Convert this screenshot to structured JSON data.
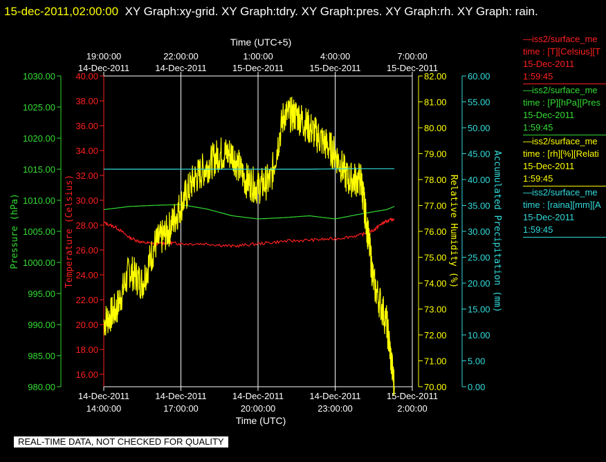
{
  "header": {
    "datetime": "15-dec-2011,02:00:00",
    "title": "XY Graph:xy-grid.  XY Graph:tdry.  XY Graph:pres.  XY Graph:rh.  XY Graph: rain."
  },
  "footer": {
    "notice": "REAL-TIME DATA, NOT CHECKED FOR QUALITY"
  },
  "legend": [
    {
      "lines": [
        "—iss2/surface_me",
        "time : [T][Celsius][T",
        "15-Dec-2011",
        "1:59:45"
      ],
      "color": "#ff2020"
    },
    {
      "lines": [
        "—iss2/surface_me",
        "time : [P][hPa][Pres",
        "15-Dec-2011",
        "1:59:45"
      ],
      "color": "#33dd33"
    },
    {
      "lines": [
        "—iss2/surface_me",
        "time : [rh][%][Relati",
        "15-Dec-2011",
        "1:59:45"
      ],
      "color": "#ffff00"
    },
    {
      "lines": [
        "—iss2/surface_me",
        "time : [raina][mm][A",
        "15-Dec-2011",
        "1:59:45"
      ],
      "color": "#33dddd"
    }
  ],
  "chart_data": {
    "type": "line",
    "x_bottom": {
      "label": "Time (UTC)",
      "range_hours_from_14dec_14utc": [
        0,
        12
      ],
      "ticks": [
        {
          "date": "14-Dec-2011",
          "time": "14:00:00"
        },
        {
          "date": "14-Dec-2011",
          "time": "17:00:00"
        },
        {
          "date": "14-Dec-2011",
          "time": "20:00:00"
        },
        {
          "date": "14-Dec-2011",
          "time": "23:00:00"
        },
        {
          "date": "15-Dec-2011",
          "time": "2:00:00"
        }
      ]
    },
    "x_top": {
      "label": "Time (UTC+5)",
      "ticks": [
        {
          "time": "19:00:00",
          "date": "14-Dec-2011"
        },
        {
          "time": "22:00:00",
          "date": "14-Dec-2011"
        },
        {
          "time": "1:00:00",
          "date": "15-Dec-2011"
        },
        {
          "time": "4:00:00",
          "date": "15-Dec-2011"
        },
        {
          "time": "7:00:00",
          "date": "15-Dec-2011"
        }
      ]
    },
    "axes": {
      "pressure": {
        "label": "Pressure (hPa)",
        "range": [
          980,
          1030
        ],
        "ticks": [
          "980.00",
          "985.00",
          "990.00",
          "995.00",
          "1000.00",
          "1005.00",
          "1010.00",
          "1015.00",
          "1020.00",
          "1025.00",
          "1030.00"
        ],
        "color": "#33dd33"
      },
      "temperature": {
        "label": "Temperature (Celsius)",
        "range": [
          15,
          40
        ],
        "ticks": [
          "16.00",
          "18.00",
          "20.00",
          "22.00",
          "24.00",
          "26.00",
          "28.00",
          "30.00",
          "32.00",
          "34.00",
          "36.00",
          "38.00",
          "40.00"
        ],
        "color": "#ff2020"
      },
      "rh": {
        "label": "Relative Humidity (%)",
        "range": [
          70,
          82
        ],
        "ticks": [
          "70.00",
          "71.00",
          "72.00",
          "73.00",
          "74.00",
          "75.00",
          "76.00",
          "77.00",
          "78.00",
          "79.00",
          "80.00",
          "81.00",
          "82.00"
        ],
        "color": "#ffff00"
      },
      "rain": {
        "label": "Accumulated Precipitation (mm)",
        "range": [
          0,
          60
        ],
        "ticks": [
          "0.00",
          "5.00",
          "10.00",
          "15.00",
          "20.00",
          "25.00",
          "30.00",
          "35.00",
          "40.00",
          "45.00",
          "50.00",
          "55.00",
          "60.00"
        ],
        "color": "#33dddd"
      }
    },
    "series": [
      {
        "name": "pressure",
        "axis": "pressure",
        "color": "#33dd33",
        "x": [
          0,
          1,
          2,
          3,
          4,
          5,
          6,
          7,
          8,
          9,
          10,
          11,
          11.3
        ],
        "y": [
          1008.5,
          1009.0,
          1009.2,
          1009.3,
          1008.6,
          1007.5,
          1007.0,
          1007.2,
          1007.5,
          1007.0,
          1007.8,
          1008.5,
          1009.0
        ]
      },
      {
        "name": "temperature",
        "axis": "temperature",
        "color": "#ff2020",
        "x": [
          0,
          0.5,
          1,
          1.5,
          2,
          2.5,
          3,
          4,
          5,
          6,
          7,
          8,
          9,
          10,
          10.5,
          10.8,
          11,
          11.3
        ],
        "y": [
          28.2,
          27.8,
          27.0,
          26.6,
          26.5,
          26.6,
          26.5,
          26.5,
          26.3,
          26.5,
          26.7,
          26.8,
          26.9,
          27.2,
          27.6,
          28.1,
          28.3,
          28.5
        ]
      },
      {
        "name": "rh",
        "axis": "rh",
        "color": "#ffff00",
        "noisy": true,
        "x": [
          0,
          0.5,
          1,
          1.5,
          2,
          2.5,
          3,
          3.5,
          4,
          4.5,
          5,
          5.5,
          6,
          6.5,
          7,
          7.5,
          8,
          8.5,
          9,
          9.5,
          10,
          10.2,
          10.5,
          11,
          11.3
        ],
        "y": [
          72.5,
          73.0,
          74.5,
          74.0,
          75.5,
          76.0,
          77.0,
          78.0,
          78.5,
          79.0,
          79.0,
          78.0,
          77.7,
          78.0,
          80.5,
          80.5,
          80.0,
          79.5,
          79.0,
          78.0,
          78.0,
          76.5,
          74.0,
          72.5,
          70.0
        ]
      },
      {
        "name": "rain",
        "axis": "rain",
        "color": "#33dddd",
        "x": [
          0,
          3,
          5,
          8,
          10,
          11.3
        ],
        "y": [
          42.0,
          42.0,
          42.0,
          42.0,
          42.1,
          42.1
        ]
      }
    ],
    "grid": true
  }
}
